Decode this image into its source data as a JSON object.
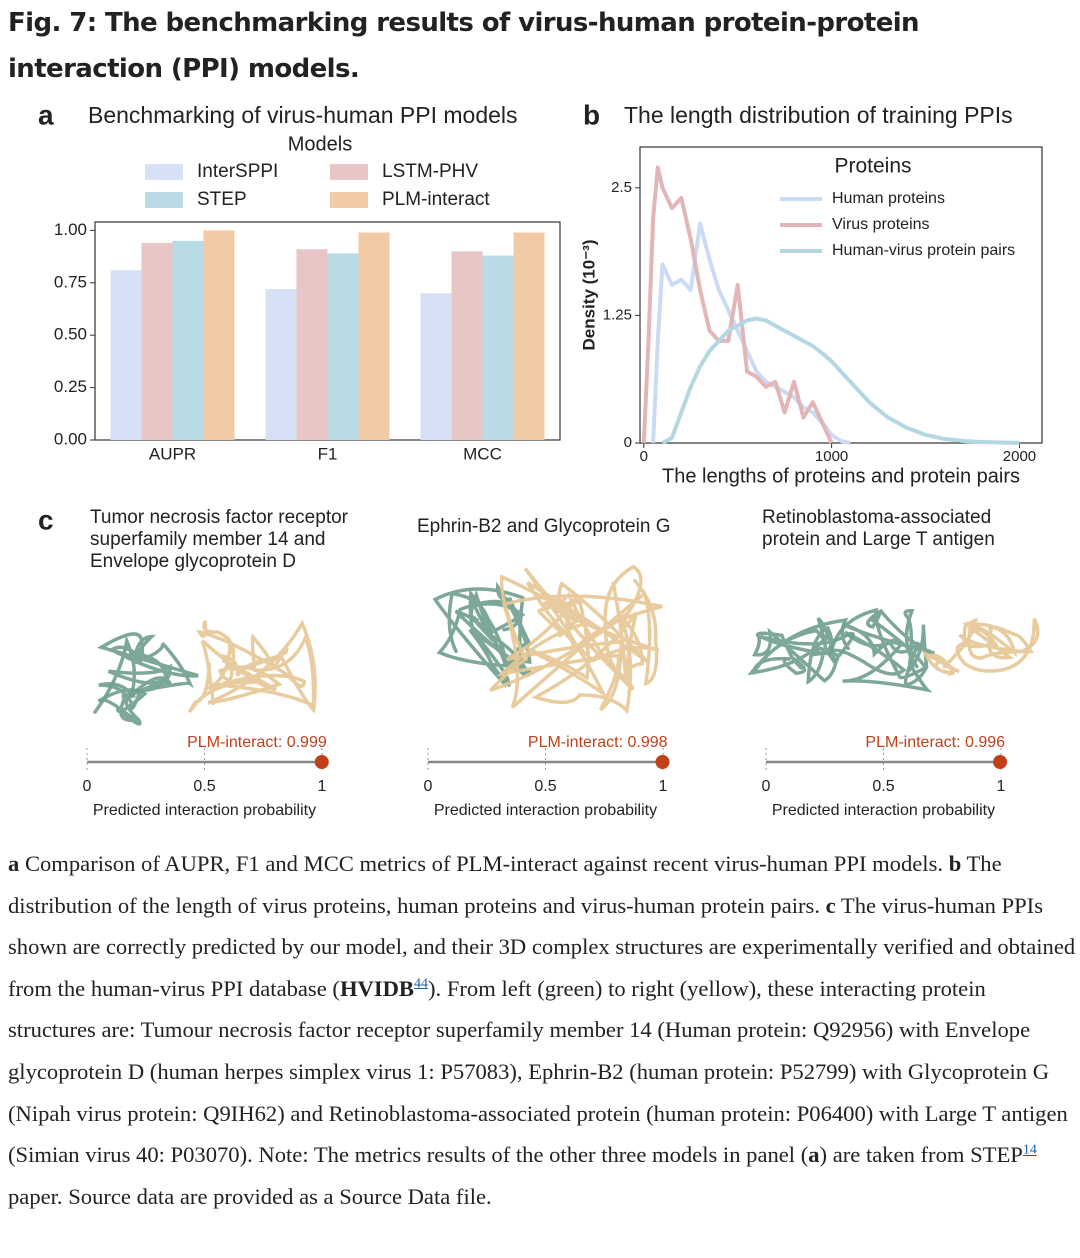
{
  "title": "Fig. 7: The benchmarking results of virus-human protein-protein interaction (PPI) models.",
  "chart_data": [
    {
      "panel": "a",
      "type": "bar",
      "title": "Benchmarking of virus-human PPI models",
      "legend_title": "Models",
      "legend": "above",
      "categories": [
        "AUPR",
        "F1",
        "MCC"
      ],
      "series": [
        {
          "name": "InterSPPI",
          "color": "#d6e1f7",
          "values": [
            0.81,
            0.72,
            0.7
          ]
        },
        {
          "name": "LSTM-PHV",
          "color": "#e9c6c6",
          "values": [
            0.94,
            0.91,
            0.9
          ]
        },
        {
          "name": "STEP",
          "color": "#b9dbe5",
          "values": [
            0.95,
            0.89,
            0.88
          ]
        },
        {
          "name": "PLM-interact",
          "color": "#f2caa6",
          "values": [
            1.0,
            0.99,
            0.99
          ]
        }
      ],
      "ylim": [
        0,
        1.04
      ],
      "yticks": [
        {
          "value": 0,
          "label": "0.00"
        },
        {
          "value": 0.25,
          "label": "0.25"
        },
        {
          "value": 0.5,
          "label": "0.50"
        },
        {
          "value": 0.75,
          "label": "0.75"
        },
        {
          "value": 1,
          "label": "1.00"
        }
      ]
    },
    {
      "panel": "b",
      "type": "line",
      "title": "The length distribution of training PPIs",
      "xlabel": "The lengths of proteins and protein pairs",
      "ylabel": "Density (10⁻³)",
      "legend_title": "Proteins",
      "legend": "upper right",
      "x": [
        0,
        25,
        50,
        75,
        100,
        150,
        200,
        250,
        300,
        350,
        400,
        450,
        500,
        550,
        600,
        650,
        700,
        750,
        800,
        850,
        900,
        950,
        1000,
        1050,
        1100,
        1200,
        1300,
        1400,
        1500,
        1600,
        1700,
        1800,
        1900,
        2000
      ],
      "series": [
        {
          "name": "Human proteins",
          "color": "#cbdaf5",
          "values": [
            null,
            null,
            0,
            1.0,
            1.75,
            1.55,
            1.6,
            1.5,
            2.15,
            1.8,
            1.5,
            1.3,
            1.1,
            0.9,
            0.7,
            0.6,
            0.55,
            0.5,
            0.45,
            0.35,
            0.3,
            0.2,
            0.08,
            0.02,
            0,
            null,
            null,
            null,
            null,
            null,
            null,
            null,
            null,
            null
          ]
        },
        {
          "name": "Virus proteins",
          "color": "#e2b6b6",
          "values": [
            0,
            1.0,
            2.2,
            2.7,
            2.5,
            2.3,
            2.4,
            2.0,
            1.5,
            1.1,
            1.0,
            1.0,
            1.55,
            0.7,
            0.65,
            0.55,
            0.6,
            0.3,
            0.6,
            0.25,
            0.4,
            0.2,
            0,
            null,
            null,
            null,
            null,
            null,
            null,
            null,
            null,
            null,
            null,
            null
          ]
        },
        {
          "name": "Human-virus protein pairs",
          "color": "#b3d8e1",
          "values": [
            null,
            null,
            null,
            null,
            0,
            0.05,
            0.3,
            0.55,
            0.75,
            0.9,
            1.0,
            1.1,
            1.15,
            1.2,
            1.22,
            1.2,
            1.15,
            1.1,
            1.05,
            1.0,
            0.95,
            0.88,
            0.8,
            0.7,
            0.6,
            0.4,
            0.25,
            0.15,
            0.08,
            0.04,
            0.02,
            0.01,
            0.005,
            0
          ]
        }
      ],
      "xlim": [
        -20,
        2120
      ],
      "xticks": [
        0,
        1000,
        2000
      ],
      "ylim": [
        0,
        2.9
      ],
      "yticks": [
        0,
        1.25,
        2.5
      ]
    }
  ],
  "panel_c": {
    "panel": "c",
    "items": [
      {
        "title_lines": [
          "Tumor necrosis factor receptor",
          "superfamily member 14 and",
          "Envelope glycoprotein D"
        ],
        "value": 0.999,
        "value_label": "PLM-interact: 0.999",
        "xlim": [
          0,
          1
        ],
        "xticks": [
          0,
          0.5,
          1
        ],
        "xlabel": "Predicted interaction probability"
      },
      {
        "title_lines": [
          "Ephrin-B2 and Glycoprotein G"
        ],
        "value": 0.998,
        "value_label": "PLM-interact: 0.998",
        "xlim": [
          0,
          1
        ],
        "xticks": [
          0,
          0.5,
          1
        ],
        "xlabel": "Predicted interaction probability"
      },
      {
        "title_lines": [
          "Retinoblastoma-associated",
          "protein  and Large T antigen"
        ],
        "value": 0.996,
        "value_label": "PLM-interact: 0.996",
        "xlim": [
          0,
          1
        ],
        "xticks": [
          0,
          0.5,
          1
        ],
        "xlabel": "Predicted interaction probability"
      }
    ]
  },
  "caption": [
    {
      "text": "a",
      "bold": true
    },
    {
      "text": " Comparison of AUPR, F1 and MCC metrics of PLM-interact against recent virus-human PPI models. "
    },
    {
      "text": "b",
      "bold": true
    },
    {
      "text": " The distribution of the length of virus proteins, human proteins and virus-human protein pairs. "
    },
    {
      "text": "c",
      "bold": true
    },
    {
      "text": " The virus-human PPIs shown are correctly predicted by our model, and their 3D complex structures are experimentally verified and obtained from the human-virus PPI database ("
    },
    {
      "text": "HVIDB",
      "bold": true
    },
    {
      "text": "44",
      "sup": true
    },
    {
      "text": "). From left (green) to right (yellow), these interacting protein structures are: Tumour necrosis factor receptor superfamily member 14 (Human protein: Q92956) with Envelope glycoprotein D (human herpes simplex virus 1: P57083), Ephrin-B2 (human protein: P52799) with Glycoprotein G (Nipah virus protein: Q9IH62) and Retinoblastoma-associated protein (human protein: P06400) with Large T antigen (Simian virus 40: P03070). Note: The metrics results of the other three models in panel ("
    },
    {
      "text": "a",
      "bold": true
    },
    {
      "text": ") are taken from STEP"
    },
    {
      "text": "14",
      "sup": true
    },
    {
      "text": " paper. Source data are provided as a Source Data file."
    }
  ]
}
